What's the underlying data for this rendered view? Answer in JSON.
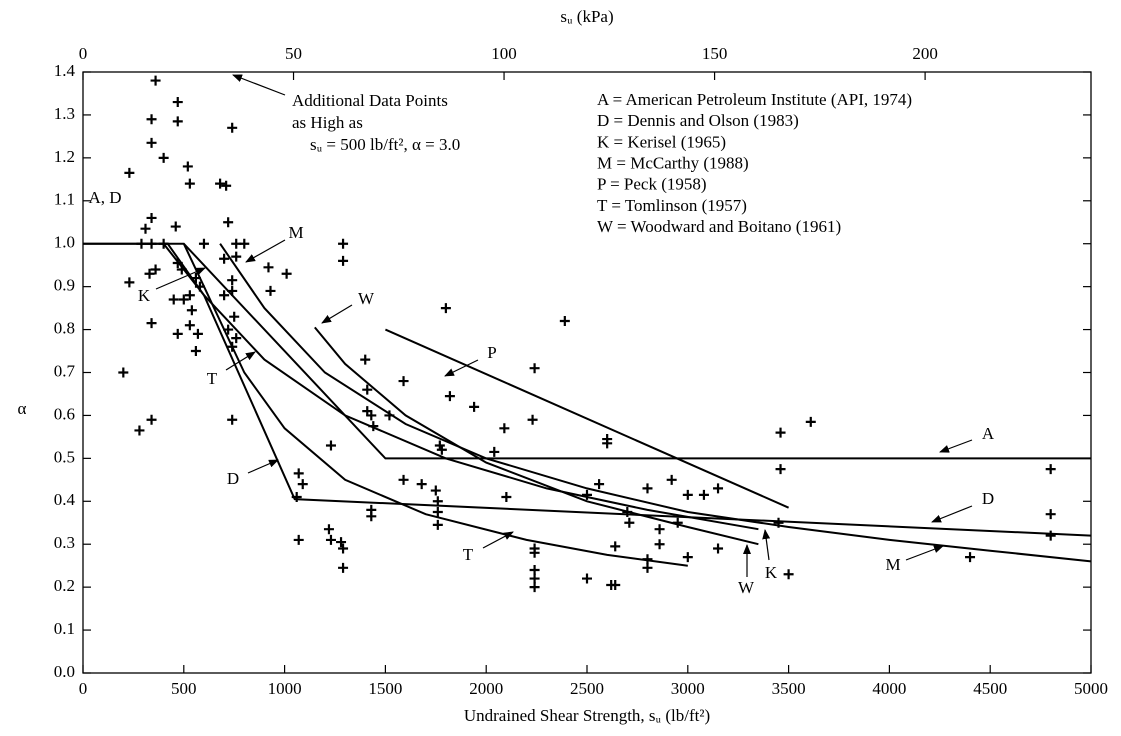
{
  "chart_data": {
    "type": "scatter",
    "xlabel": "Undrained Shear Strength, sᵤ (lb/ft²)",
    "x2label": "sᵤ (kPa)",
    "ylabel": "α",
    "xlim": [
      0,
      5000
    ],
    "xticks": [
      0,
      500,
      1000,
      1500,
      2000,
      2500,
      3000,
      3500,
      4000,
      4500,
      5000
    ],
    "x2lim": [
      0,
      239.4
    ],
    "x2ticks": [
      0,
      50,
      100,
      150,
      200
    ],
    "ylim": [
      0,
      1.4
    ],
    "yticks": [
      {
        "value": 0,
        "label": "0.0"
      },
      0.1,
      0.2,
      0.3,
      0.4,
      0.5,
      0.6,
      0.7,
      0.8,
      0.9,
      {
        "value": 1,
        "label": "1.0"
      },
      1.1,
      1.2,
      1.3,
      1.4
    ],
    "color": "#000000",
    "points": {
      "x": [
        360,
        470,
        340,
        470,
        740,
        340,
        400,
        230,
        520,
        530,
        680,
        710,
        340,
        310,
        460,
        720,
        290,
        340,
        400,
        600,
        760,
        800,
        1290,
        1290,
        230,
        330,
        360,
        490,
        470,
        560,
        700,
        760,
        920,
        1010,
        740,
        450,
        500,
        530,
        580,
        540,
        700,
        740,
        930,
        340,
        470,
        530,
        570,
        720,
        750,
        560,
        740,
        760,
        200,
        280,
        340,
        740,
        1800,
        2390,
        2240,
        1400,
        1590,
        1410,
        1820,
        1940,
        1410,
        1430,
        1520,
        1440,
        2090,
        2230,
        1230,
        1770,
        1780,
        2040,
        2600,
        2600,
        3460,
        3610,
        3460,
        1070,
        1090,
        1060,
        1590,
        1680,
        1750,
        1760,
        1760,
        1760,
        2100,
        2500,
        2560,
        2700,
        2710,
        2800,
        2920,
        3000,
        3080,
        3150,
        2860,
        2950,
        1430,
        1430,
        1070,
        1220,
        1230,
        1280,
        1290,
        1290,
        2240,
        2240,
        2240,
        2240,
        2240,
        2500,
        2620,
        2640,
        2640,
        2860,
        2800,
        2800,
        3000,
        3150,
        3450,
        3500,
        4400,
        4800,
        4800,
        4800
      ],
      "y": [
        1.38,
        1.33,
        1.29,
        1.285,
        1.27,
        1.235,
        1.2,
        1.165,
        1.18,
        1.14,
        1.14,
        1.135,
        1.06,
        1.035,
        1.04,
        1.05,
        1.0,
        1.0,
        1.0,
        1.0,
        1.0,
        1.0,
        1.0,
        0.96,
        0.91,
        0.93,
        0.94,
        0.94,
        0.955,
        0.92,
        0.965,
        0.97,
        0.945,
        0.93,
        0.915,
        0.87,
        0.87,
        0.88,
        0.9,
        0.845,
        0.88,
        0.89,
        0.89,
        0.815,
        0.79,
        0.81,
        0.79,
        0.8,
        0.83,
        0.75,
        0.76,
        0.78,
        0.7,
        0.565,
        0.59,
        0.59,
        0.85,
        0.82,
        0.71,
        0.73,
        0.68,
        0.66,
        0.645,
        0.62,
        0.61,
        0.6,
        0.6,
        0.575,
        0.57,
        0.59,
        0.53,
        0.53,
        0.52,
        0.515,
        0.545,
        0.535,
        0.56,
        0.585,
        0.475,
        0.465,
        0.44,
        0.41,
        0.45,
        0.44,
        0.425,
        0.4,
        0.375,
        0.345,
        0.41,
        0.415,
        0.44,
        0.375,
        0.35,
        0.43,
        0.45,
        0.415,
        0.415,
        0.43,
        0.335,
        0.35,
        0.38,
        0.365,
        0.31,
        0.335,
        0.31,
        0.305,
        0.29,
        0.245,
        0.29,
        0.28,
        0.24,
        0.22,
        0.2,
        0.22,
        0.205,
        0.205,
        0.295,
        0.3,
        0.265,
        0.245,
        0.27,
        0.29,
        0.35,
        0.23,
        0.27,
        0.475,
        0.37,
        0.32
      ]
    },
    "lines": [
      {
        "x": [
          0,
          500,
          1500,
          5000
        ],
        "y": [
          1.0,
          1.0,
          0.5,
          0.5
        ]
      },
      {
        "x": [
          0,
          420,
          600,
          1050,
          5000
        ],
        "y": [
          1.0,
          1.0,
          0.88,
          0.405,
          0.32
        ]
      },
      {
        "x": [
          400,
          600,
          900,
          1300,
          1800,
          2300,
          2800,
          3350
        ],
        "y": [
          1.0,
          0.88,
          0.73,
          0.6,
          0.5,
          0.43,
          0.38,
          0.335
        ]
      },
      {
        "x": [
          680,
          900,
          1200,
          1600,
          2000,
          2500,
          3000,
          3500,
          4000,
          4500,
          5000
        ],
        "y": [
          1.0,
          0.85,
          0.7,
          0.58,
          0.5,
          0.43,
          0.375,
          0.34,
          0.31,
          0.285,
          0.26
        ]
      },
      {
        "x": [
          1500,
          3500
        ],
        "y": [
          0.8,
          0.385
        ]
      },
      {
        "x": [
          500,
          600,
          800,
          1000,
          1300,
          1700,
          2200,
          2600,
          3000
        ],
        "y": [
          1.0,
          0.9,
          0.7,
          0.57,
          0.45,
          0.37,
          0.31,
          0.275,
          0.25
        ]
      },
      {
        "x": [
          1150,
          1300,
          1600,
          2000,
          2500,
          3000,
          3350
        ],
        "y": [
          0.805,
          0.72,
          0.6,
          0.49,
          0.4,
          0.34,
          0.3
        ]
      }
    ],
    "curve_labels": [
      "A, D",
      "M",
      "W",
      "P",
      "A",
      "D",
      "M",
      "K",
      "W",
      "T",
      "D",
      "K",
      "T"
    ],
    "key": [
      "A = American Petroleum Institute (API, 1974)",
      "D = Dennis and Olson (1983)",
      "K = Kerisel (1965)",
      "M = McCarthy (1988)",
      "P  = Peck (1958)",
      "T = Tomlinson (1957)",
      "W = Woodward and Boitano (1961)"
    ],
    "callout": [
      "Additional Data Points",
      "as High as",
      "sᵤ = 500 lb/ft², α = 3.0"
    ]
  }
}
